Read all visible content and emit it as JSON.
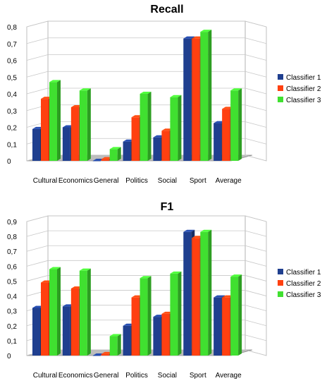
{
  "chart_data": [
    {
      "type": "bar",
      "title": "Recall",
      "categories": [
        "Cultural",
        "Economics",
        "General",
        "Politics",
        "Social",
        "Sport",
        "Average"
      ],
      "series": [
        {
          "name": "Classifier 1",
          "values": [
            0.19,
            0.2,
            0.0,
            0.115,
            0.14,
            0.73,
            0.225
          ]
        },
        {
          "name": "Classifier 2",
          "values": [
            0.37,
            0.32,
            0.01,
            0.26,
            0.18,
            0.73,
            0.31
          ]
        },
        {
          "name": "Classifier 3",
          "values": [
            0.47,
            0.42,
            0.07,
            0.4,
            0.38,
            0.77,
            0.42
          ]
        }
      ],
      "y_ticks": [
        "0",
        "0,1",
        "0,2",
        "0,3",
        "0,4",
        "0,5",
        "0,6",
        "0,7",
        "0,8"
      ],
      "ylim": [
        0,
        0.8
      ],
      "legend_position": "right",
      "grid": true,
      "colors": [
        "#1f3f8f",
        "#ff4010",
        "#40e030"
      ]
    },
    {
      "type": "bar",
      "title": "F1",
      "categories": [
        "Cultural",
        "Economics",
        "General",
        "Politics",
        "Social",
        "Sport",
        "Average"
      ],
      "series": [
        {
          "name": "Classifier 1",
          "values": [
            0.32,
            0.33,
            0.0,
            0.2,
            0.26,
            0.83,
            0.39
          ]
        },
        {
          "name": "Classifier 2",
          "values": [
            0.49,
            0.45,
            0.01,
            0.39,
            0.28,
            0.79,
            0.39
          ]
        },
        {
          "name": "Classifier 3",
          "values": [
            0.58,
            0.57,
            0.13,
            0.52,
            0.55,
            0.83,
            0.53
          ]
        }
      ],
      "y_ticks": [
        "0",
        "0,1",
        "0,2",
        "0,3",
        "0,4",
        "0,5",
        "0,6",
        "0,7",
        "0,8",
        "0,9"
      ],
      "ylim": [
        0,
        0.9
      ],
      "legend_position": "right",
      "grid": true,
      "colors": [
        "#1f3f8f",
        "#ff4010",
        "#40e030"
      ]
    }
  ]
}
